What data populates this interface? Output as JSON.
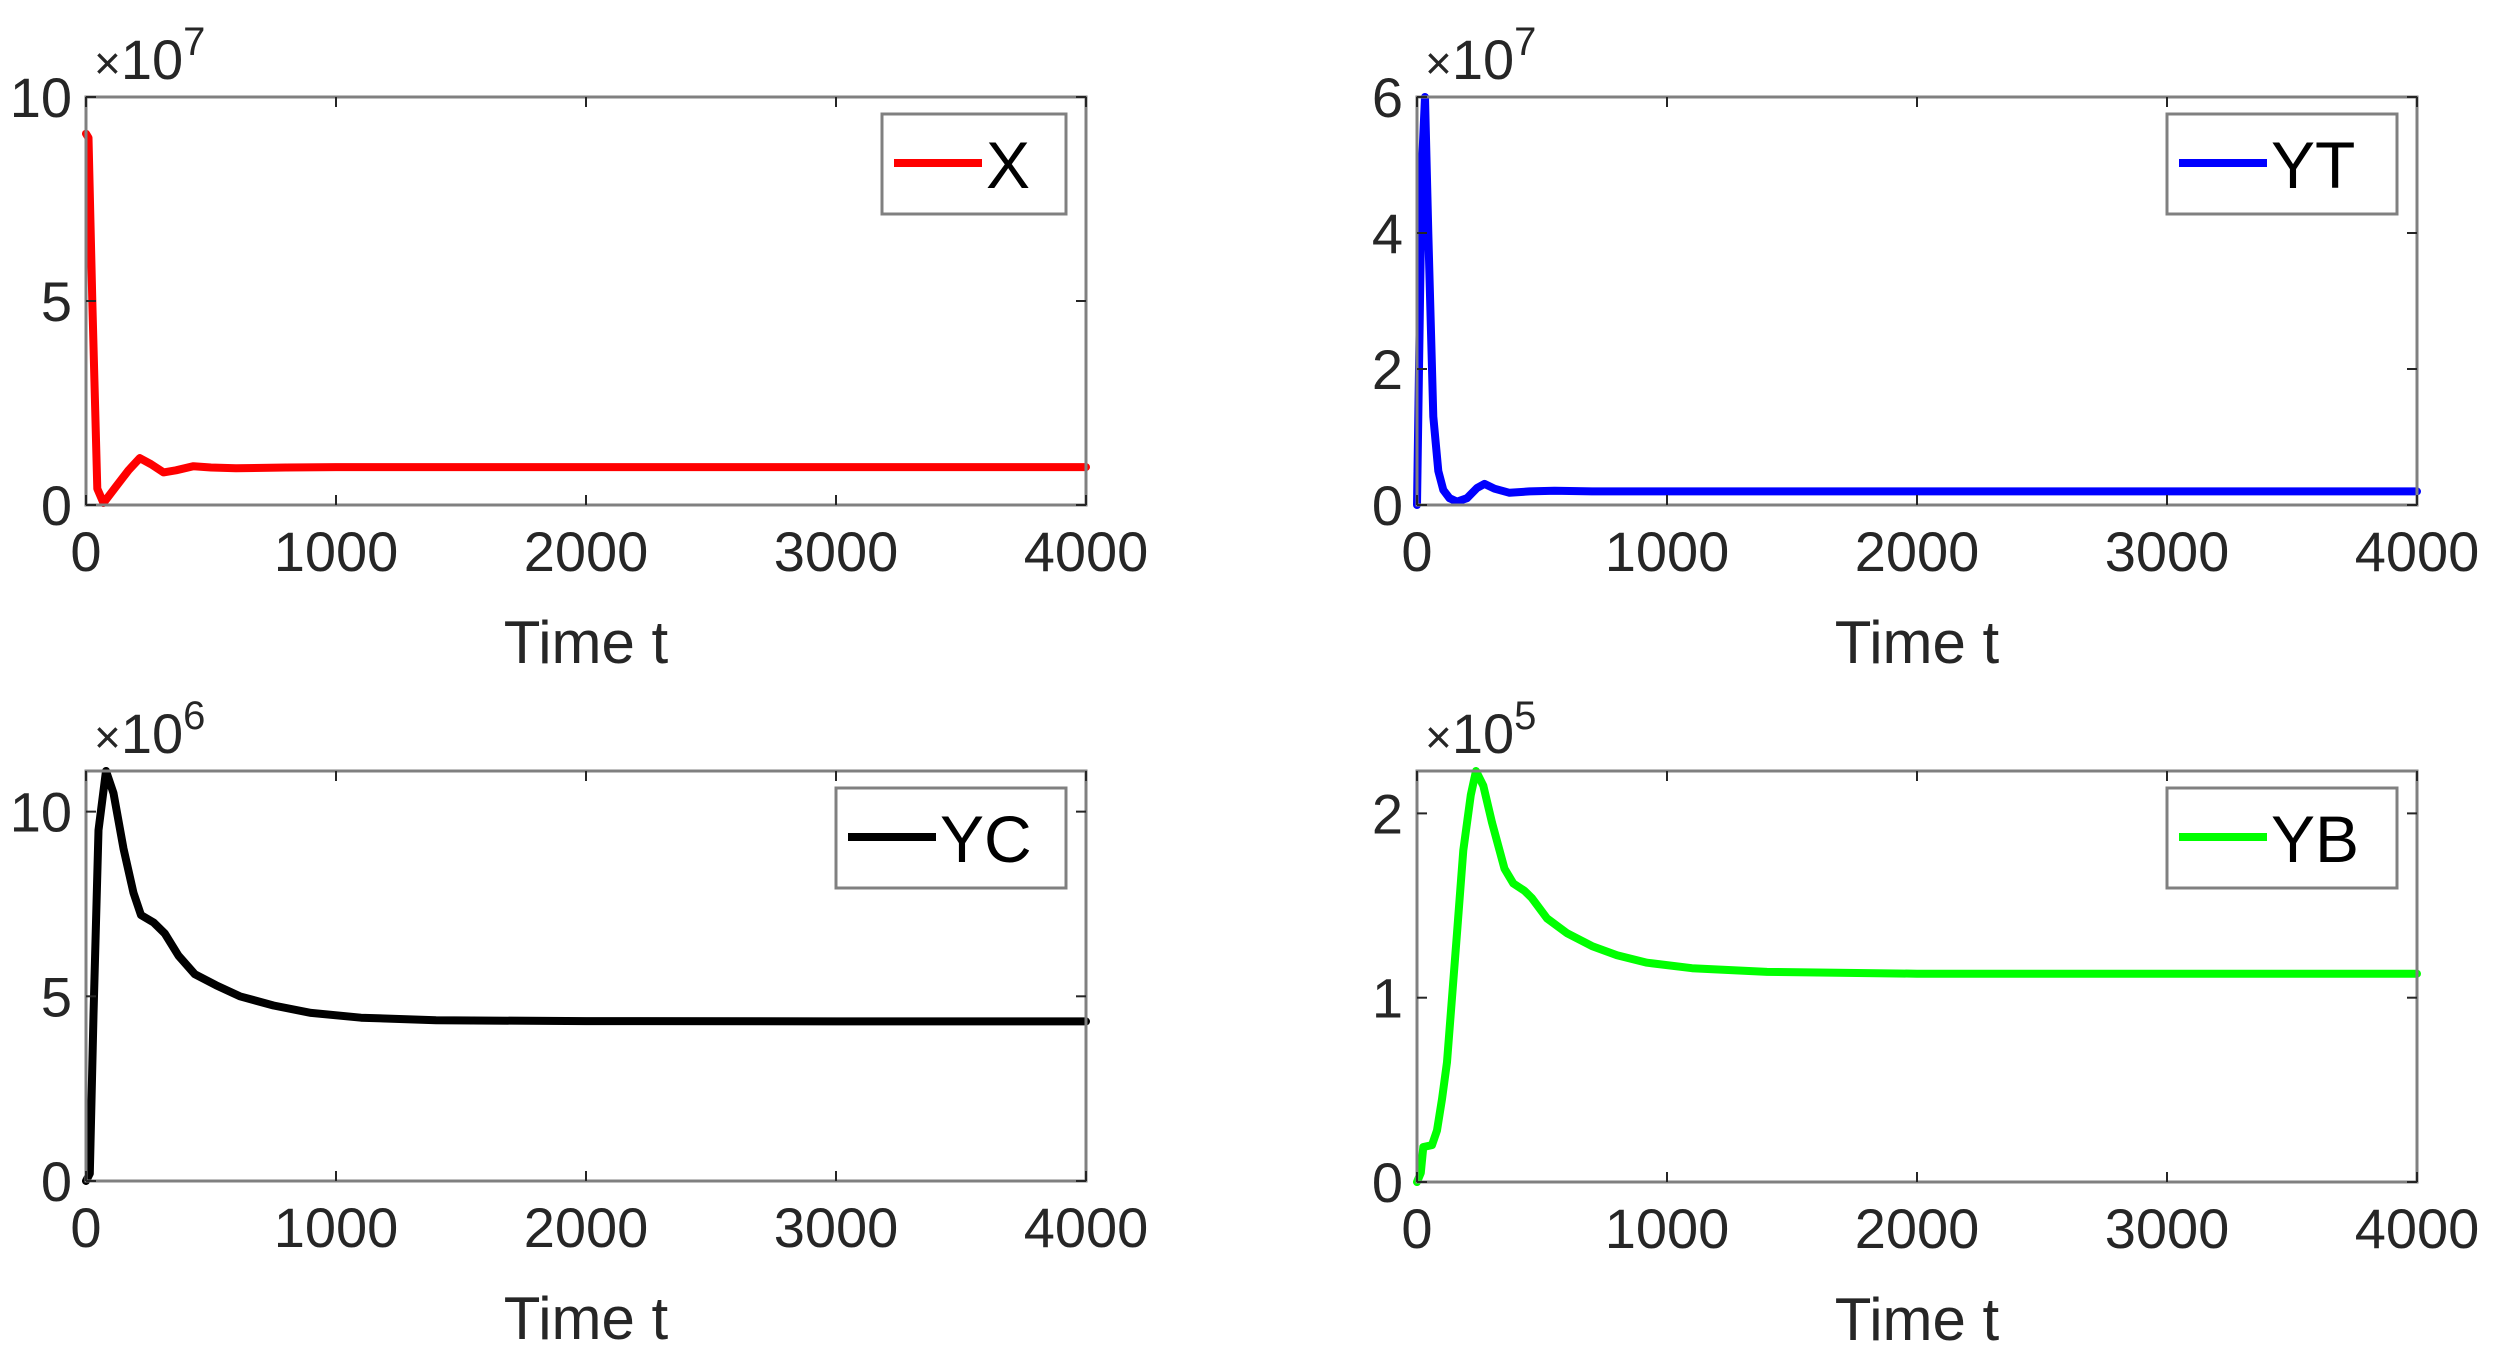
{
  "figure": {
    "layout": "2x2 subplots",
    "background": "#ffffff",
    "axis_color": "#808080",
    "text_color": "#262626"
  },
  "chart_data": [
    {
      "type": "line",
      "id": "X",
      "position": "top-left",
      "title": "",
      "xlabel": "Time t",
      "ylabel": "",
      "exponent_label": {
        "prefix": "×10",
        "power": "7"
      },
      "xlim": [
        0,
        4000
      ],
      "ylim": [
        0,
        10
      ],
      "xticks": [
        0,
        1000,
        2000,
        3000,
        4000
      ],
      "xtick_labels": [
        "0",
        "1000",
        "2000",
        "3000",
        "4000"
      ],
      "yticks": [
        0,
        5,
        10
      ],
      "ytick_labels": [
        "0",
        "5",
        "10"
      ],
      "grid": false,
      "legend": {
        "position": "northeast",
        "entries": [
          "X"
        ]
      },
      "series": [
        {
          "name": "X",
          "color": "#ff0000",
          "x": [
            0,
            10,
            25,
            45,
            70,
            120,
            170,
            215,
            260,
            310,
            360,
            430,
            500,
            600,
            800,
            1000,
            1500,
            2000,
            3000,
            4000
          ],
          "y": [
            9.1,
            9.0,
            5.0,
            0.4,
            0.05,
            0.45,
            0.85,
            1.15,
            1.0,
            0.8,
            0.85,
            0.95,
            0.92,
            0.9,
            0.92,
            0.93,
            0.93,
            0.93,
            0.93,
            0.93
          ]
        }
      ]
    },
    {
      "type": "line",
      "id": "YT",
      "position": "top-right",
      "title": "",
      "xlabel": "Time t",
      "ylabel": "",
      "exponent_label": {
        "prefix": "×10",
        "power": "7"
      },
      "xlim": [
        0,
        4000
      ],
      "ylim": [
        0,
        6
      ],
      "xticks": [
        0,
        1000,
        2000,
        3000,
        4000
      ],
      "xtick_labels": [
        "0",
        "1000",
        "2000",
        "3000",
        "4000"
      ],
      "yticks": [
        0,
        2,
        4,
        6
      ],
      "ytick_labels": [
        "0",
        "2",
        "4",
        "6"
      ],
      "grid": false,
      "legend": {
        "position": "northeast",
        "entries": [
          "YT"
        ]
      },
      "series": [
        {
          "name": "YT",
          "color": "#0000ff",
          "x": [
            0,
            10,
            20,
            32,
            45,
            65,
            85,
            105,
            130,
            160,
            200,
            240,
            270,
            310,
            370,
            450,
            550,
            700,
            1000,
            2000,
            3000,
            4000
          ],
          "y": [
            0,
            2.5,
            5.0,
            6.0,
            4.0,
            1.3,
            0.5,
            0.22,
            0.1,
            0.05,
            0.1,
            0.25,
            0.31,
            0.24,
            0.18,
            0.2,
            0.21,
            0.2,
            0.2,
            0.2,
            0.2,
            0.2
          ]
        }
      ]
    },
    {
      "type": "line",
      "id": "YC",
      "position": "bottom-left",
      "title": "",
      "xlabel": "Time t",
      "ylabel": "",
      "exponent_label": {
        "prefix": "×10",
        "power": "6"
      },
      "xlim": [
        0,
        4000
      ],
      "ylim": [
        0,
        11.1
      ],
      "xticks": [
        0,
        1000,
        2000,
        3000,
        4000
      ],
      "xtick_labels": [
        "0",
        "1000",
        "2000",
        "3000",
        "4000"
      ],
      "yticks": [
        0,
        5,
        10
      ],
      "ytick_labels": [
        "0",
        "5",
        "10"
      ],
      "grid": false,
      "legend": {
        "position": "northeast",
        "entries": [
          "YC"
        ]
      },
      "series": [
        {
          "name": "YC",
          "color": "#000000",
          "x": [
            0,
            15,
            30,
            50,
            80,
            110,
            150,
            190,
            220,
            270,
            315,
            370,
            435,
            520,
            615,
            750,
            900,
            1100,
            1400,
            2000,
            3000,
            4000
          ],
          "y": [
            0,
            0.2,
            4.5,
            9.5,
            11.1,
            10.5,
            9.0,
            7.8,
            7.2,
            7.0,
            6.7,
            6.1,
            5.6,
            5.3,
            5.0,
            4.75,
            4.55,
            4.42,
            4.35,
            4.33,
            4.32,
            4.32
          ]
        }
      ]
    },
    {
      "type": "line",
      "id": "YB",
      "position": "bottom-right",
      "title": "",
      "xlabel": "Time t",
      "ylabel": "",
      "exponent_label": {
        "prefix": "×10",
        "power": "5"
      },
      "xlim": [
        0,
        4000
      ],
      "ylim": [
        0,
        2.23
      ],
      "xticks": [
        0,
        1000,
        2000,
        3000,
        4000
      ],
      "xtick_labels": [
        "0",
        "1000",
        "2000",
        "3000",
        "4000"
      ],
      "yticks": [
        0,
        1,
        2
      ],
      "ytick_labels": [
        "0",
        "1",
        "2"
      ],
      "grid": false,
      "legend": {
        "position": "northeast",
        "entries": [
          "YB"
        ]
      },
      "series": [
        {
          "name": "YB",
          "color": "#00ff00",
          "x": [
            0,
            15,
            25,
            60,
            80,
            100,
            120,
            140,
            160,
            185,
            215,
            236,
            265,
            300,
            350,
            385,
            430,
            460,
            520,
            600,
            700,
            800,
            920,
            1100,
            1400,
            2000,
            3000,
            4000
          ],
          "y": [
            0,
            0.05,
            0.19,
            0.2,
            0.28,
            0.45,
            0.65,
            1.0,
            1.35,
            1.8,
            2.1,
            2.23,
            2.15,
            1.95,
            1.7,
            1.62,
            1.58,
            1.54,
            1.43,
            1.35,
            1.28,
            1.23,
            1.19,
            1.16,
            1.14,
            1.13,
            1.13,
            1.13
          ]
        }
      ]
    }
  ]
}
